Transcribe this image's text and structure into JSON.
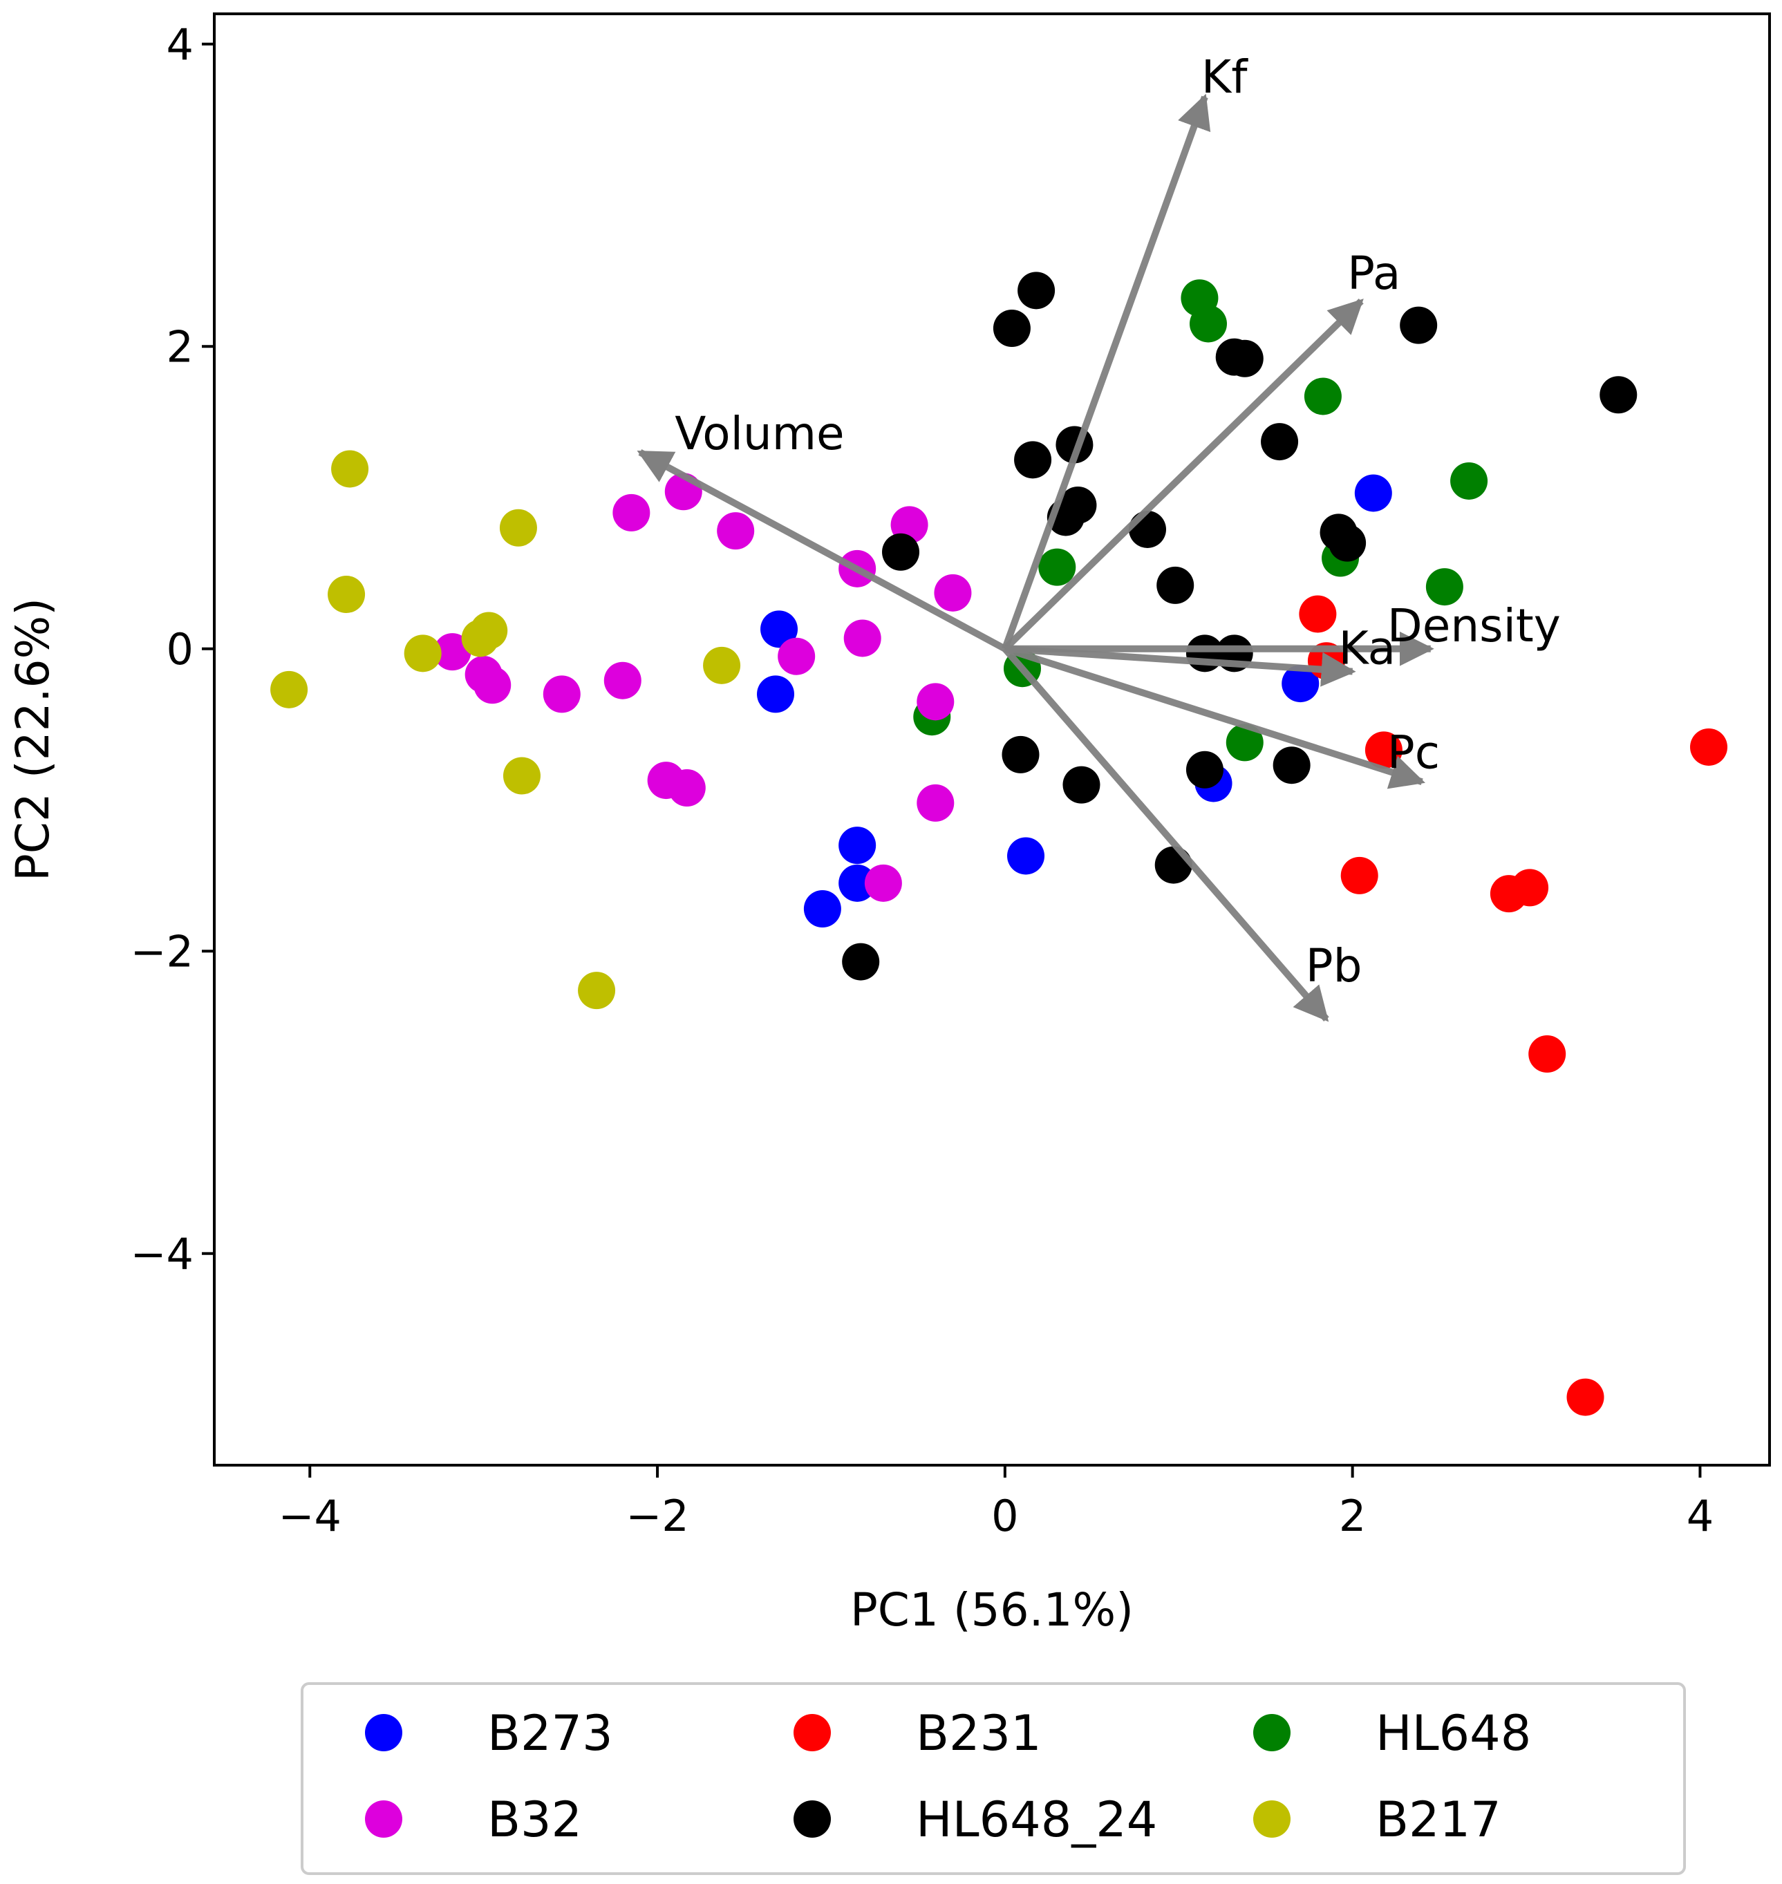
{
  "chart_data": {
    "type": "scatter",
    "title": "",
    "xlabel": "PC1 (56.1%)",
    "ylabel": "PC2 (22.6%)",
    "xlim": [
      -4.55,
      4.4
    ],
    "ylim": [
      -5.4,
      4.2
    ],
    "xticks": [
      -4,
      -2,
      0,
      2,
      4
    ],
    "yticks": [
      -4,
      -2,
      0,
      2,
      4
    ],
    "xtick_labels": [
      "−4",
      "−2",
      "0",
      "2",
      "4"
    ],
    "ytick_labels": [
      "−4",
      "−2",
      "0",
      "2",
      "4"
    ],
    "grid": false,
    "legend_position": "bottom",
    "loadings": [
      {
        "name": "Kf",
        "x": 1.15,
        "y": 3.65
      },
      {
        "name": "Pa",
        "x": 2.05,
        "y": 2.3
      },
      {
        "name": "Volume",
        "x": -2.1,
        "y": 1.3
      },
      {
        "name": "Density",
        "x": 2.45,
        "y": 0.0
      },
      {
        "name": "Ka",
        "x": 2.0,
        "y": -0.15
      },
      {
        "name": "Pc",
        "x": 2.4,
        "y": -0.88
      },
      {
        "name": "Pb",
        "x": 1.85,
        "y": -2.45
      }
    ],
    "arrow_label_positions": {
      "Kf": {
        "x": 1.13,
        "y": 3.68
      },
      "Pa": {
        "x": 1.97,
        "y": 2.38
      },
      "Volume": {
        "x": -1.9,
        "y": 1.32
      },
      "Density": {
        "x": 2.2,
        "y": 0.05
      },
      "Ka": {
        "x": 1.92,
        "y": -0.1
      },
      "Pc": {
        "x": 2.2,
        "y": -0.79
      },
      "Pb": {
        "x": 1.73,
        "y": -2.2
      }
    },
    "series": [
      {
        "name": "B273",
        "color": "#0000ff",
        "x": [
          -1.3,
          -1.32,
          -0.85,
          -0.85,
          -1.05,
          0.12,
          1.7,
          2.12,
          1.2
        ],
        "y": [
          0.13,
          -0.3,
          -1.3,
          -1.55,
          -1.72,
          -1.37,
          -0.23,
          1.03,
          -0.89
        ]
      },
      {
        "name": "B231",
        "color": "#ff0000",
        "x": [
          1.8,
          1.85,
          2.18,
          4.05,
          2.04,
          2.9,
          3.02,
          3.12,
          3.34
        ],
        "y": [
          0.23,
          -0.08,
          -0.67,
          -0.65,
          -1.5,
          -1.62,
          -1.58,
          -2.68,
          -4.95
        ]
      },
      {
        "name": "HL648",
        "color": "#008000",
        "x": [
          1.12,
          1.17,
          1.83,
          2.67,
          0.3,
          1.93,
          2.53,
          0.1,
          -0.42,
          1.38
        ],
        "y": [
          2.32,
          2.15,
          1.67,
          1.11,
          0.54,
          0.6,
          0.41,
          -0.13,
          -0.45,
          -0.62
        ]
      },
      {
        "name": "B32",
        "color": "#dd00dd",
        "x": [
          -1.85,
          -2.15,
          -1.55,
          -0.55,
          -0.85,
          -0.3,
          -0.82,
          -1.2,
          -2.2,
          -2.55,
          -3.18,
          -3.0,
          -2.95,
          -0.4,
          -1.95,
          -1.83,
          -0.4,
          -0.7
        ],
        "y": [
          1.04,
          0.9,
          0.78,
          0.82,
          0.53,
          0.37,
          0.07,
          -0.05,
          -0.21,
          -0.3,
          -0.02,
          -0.17,
          -0.24,
          -0.35,
          -0.87,
          -0.92,
          -1.02,
          -1.55
        ]
      },
      {
        "name": "HL648_24",
        "color": "#000000",
        "x": [
          0.18,
          0.04,
          1.32,
          1.38,
          2.38,
          3.53,
          1.58,
          0.4,
          0.16,
          0.42,
          0.35,
          0.82,
          1.92,
          1.97,
          -0.6,
          0.98,
          1.15,
          1.32,
          0.09,
          1.65,
          1.15,
          0.44,
          0.97,
          -0.83
        ],
        "y": [
          2.37,
          2.12,
          1.93,
          1.92,
          2.14,
          1.68,
          1.37,
          1.35,
          1.25,
          0.95,
          0.87,
          0.79,
          0.77,
          0.7,
          0.64,
          0.42,
          -0.03,
          -0.03,
          -0.7,
          -0.77,
          -0.8,
          -0.9,
          -1.43,
          -2.07
        ]
      },
      {
        "name": "B217",
        "color": "#bfbf00",
        "x": [
          -3.77,
          -2.8,
          -3.79,
          -2.97,
          -3.02,
          -3.35,
          -4.12,
          -1.63,
          -2.78,
          -2.35
        ],
        "y": [
          1.19,
          0.8,
          0.36,
          0.12,
          0.07,
          -0.03,
          -0.27,
          -0.11,
          -0.84,
          -2.26
        ]
      }
    ]
  }
}
